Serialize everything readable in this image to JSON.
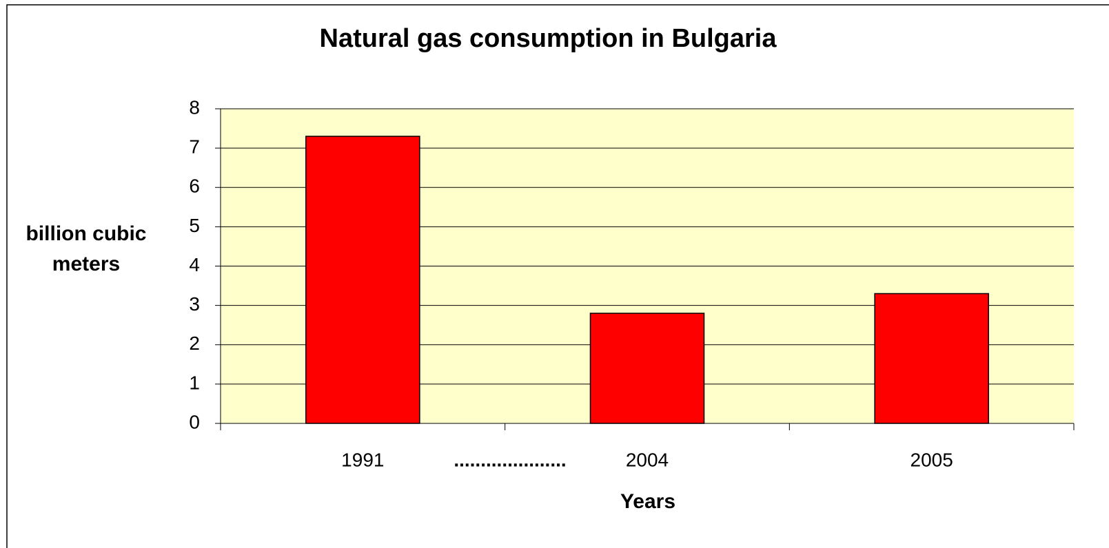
{
  "chart_data": {
    "type": "bar",
    "title": "Natural gas consumption in Bulgaria",
    "categories": [
      "1991",
      "2004",
      "2005"
    ],
    "values": [
      7.3,
      2.8,
      3.3
    ],
    "color": "#ff0000",
    "ylabel": "billion cubic meters",
    "xlabel": "Years",
    "annotation": ".....................",
    "ylim": [
      0,
      8
    ],
    "yticks": [
      0,
      1,
      2,
      3,
      4,
      5,
      6,
      7,
      8
    ],
    "grid": true
  }
}
